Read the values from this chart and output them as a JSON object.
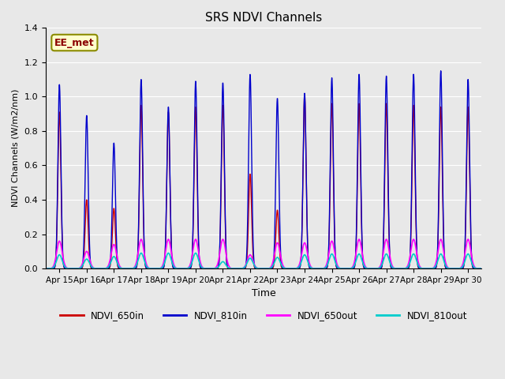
{
  "title": "SRS NDVI Channels",
  "ylabel": "NDVI Channels (W/m2/nm)",
  "xlabel": "Time",
  "annotation": "EE_met",
  "ylim": [
    0,
    1.4
  ],
  "colors": {
    "NDVI_650in": "#cc0000",
    "NDVI_810in": "#0000cc",
    "NDVI_650out": "#ff00ff",
    "NDVI_810out": "#00cccc"
  },
  "x_tick_labels": [
    "Apr 15",
    "Apr 16",
    "Apr 17",
    "Apr 18",
    "Apr 19",
    "Apr 20",
    "Apr 21",
    "Apr 22",
    "Apr 23",
    "Apr 24",
    "Apr 25",
    "Apr 26",
    "Apr 27",
    "Apr 28",
    "Apr 29",
    "Apr 30"
  ],
  "peaks_810in": [
    1.07,
    0.89,
    0.73,
    1.1,
    0.94,
    1.09,
    1.08,
    1.13,
    0.99,
    1.02,
    1.11,
    1.13,
    1.12,
    1.13,
    1.15,
    1.1
  ],
  "peaks_650in": [
    0.91,
    0.4,
    0.35,
    0.95,
    0.91,
    0.94,
    0.95,
    0.55,
    0.34,
    1.01,
    0.96,
    0.96,
    0.96,
    0.95,
    0.94,
    0.94
  ],
  "peaks_650out": [
    0.16,
    0.1,
    0.14,
    0.17,
    0.17,
    0.17,
    0.17,
    0.08,
    0.15,
    0.15,
    0.16,
    0.17,
    0.17,
    0.17,
    0.17,
    0.17
  ],
  "peaks_810out": [
    0.08,
    0.055,
    0.07,
    0.09,
    0.09,
    0.09,
    0.04,
    0.06,
    0.065,
    0.08,
    0.085,
    0.085,
    0.085,
    0.085,
    0.085,
    0.085
  ],
  "n_days": 16
}
